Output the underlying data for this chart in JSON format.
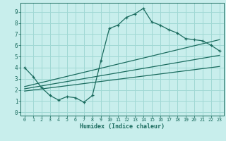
{
  "title": "",
  "xlabel": "Humidex (Indice chaleur)",
  "bg_color": "#c8eeec",
  "grid_color": "#a0d8d4",
  "line_color": "#1a6b5e",
  "xlim": [
    -0.5,
    23.5
  ],
  "ylim": [
    -0.3,
    9.8
  ],
  "xticks": [
    0,
    1,
    2,
    3,
    4,
    5,
    6,
    7,
    8,
    9,
    10,
    11,
    12,
    13,
    14,
    15,
    16,
    17,
    18,
    19,
    20,
    21,
    22,
    23
  ],
  "yticks": [
    0,
    1,
    2,
    3,
    4,
    5,
    6,
    7,
    8,
    9
  ],
  "main_x": [
    0,
    1,
    2,
    3,
    4,
    5,
    6,
    7,
    8,
    9,
    10,
    11,
    12,
    13,
    14,
    15,
    16,
    17,
    18,
    19,
    20,
    21,
    22,
    23
  ],
  "main_y": [
    4.0,
    3.2,
    2.2,
    1.5,
    1.1,
    1.4,
    1.3,
    0.9,
    1.5,
    4.6,
    7.5,
    7.8,
    8.5,
    8.8,
    9.3,
    8.1,
    7.8,
    7.4,
    7.1,
    6.6,
    6.5,
    6.4,
    6.0,
    5.5
  ],
  "line1_x": [
    0,
    23
  ],
  "line1_y": [
    2.3,
    6.5
  ],
  "line2_x": [
    0,
    23
  ],
  "line2_y": [
    2.1,
    5.1
  ],
  "line3_x": [
    0,
    23
  ],
  "line3_y": [
    1.9,
    4.1
  ]
}
